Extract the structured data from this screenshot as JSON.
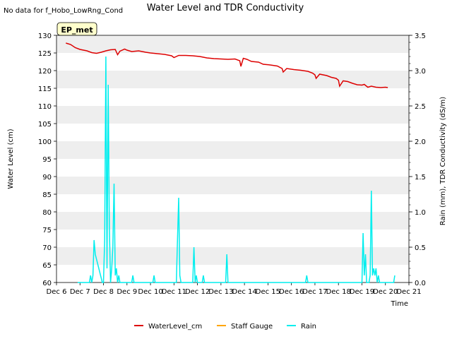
{
  "chart_data": {
    "type": "line",
    "title": "Water Level and TDR Conductivity",
    "corner_note": "No data for f_Hobo_LowRng_Cond",
    "badge": "EP_met",
    "xlabel": "Time",
    "ylabel_left": "Water Level (cm)",
    "ylabel_right": "Rain (mm), TDR Conductivity (dS/m)",
    "x_ticks": [
      "Dec 6",
      "Dec 7",
      "Dec 8",
      "Dec 9",
      "Dec 10",
      "Dec 11",
      "Dec 12",
      "Dec 13",
      "Dec 14",
      "Dec 15",
      "Dec 16",
      "Dec 17",
      "Dec 18",
      "Dec 19",
      "Dec 20",
      "Dec 21"
    ],
    "x_range_days": [
      6,
      21
    ],
    "ylim_left": [
      60,
      130
    ],
    "yticks_left": [
      "60",
      "65",
      "70",
      "75",
      "80",
      "85",
      "90",
      "95",
      "100",
      "105",
      "110",
      "115",
      "120",
      "125",
      "130"
    ],
    "ylim_right": [
      0,
      3.5
    ],
    "yticks_right": [
      "0.0",
      "0.5",
      "1.0",
      "1.5",
      "2.0",
      "2.5",
      "3.0",
      "3.5"
    ],
    "grid": "horizontal bands",
    "legend_position": "bottom",
    "colors": {
      "WaterLevel_cm": "#dd0000",
      "Staff Gauge": "#ffa500",
      "Rain": "#00eeee",
      "band": "#eeeeee"
    },
    "legend": [
      "WaterLevel_cm",
      "Staff Gauge",
      "Rain"
    ],
    "series": [
      {
        "name": "WaterLevel_cm",
        "axis": "left",
        "points": [
          [
            6.4,
            127.8
          ],
          [
            6.6,
            127.4
          ],
          [
            6.8,
            126.5
          ],
          [
            7.0,
            126.0
          ],
          [
            7.3,
            125.6
          ],
          [
            7.5,
            125.1
          ],
          [
            7.7,
            124.9
          ],
          [
            7.9,
            125.2
          ],
          [
            8.1,
            125.6
          ],
          [
            8.3,
            125.9
          ],
          [
            8.5,
            126.0
          ],
          [
            8.6,
            124.5
          ],
          [
            8.7,
            125.5
          ],
          [
            8.9,
            126.1
          ],
          [
            9.0,
            125.8
          ],
          [
            9.2,
            125.4
          ],
          [
            9.5,
            125.6
          ],
          [
            9.8,
            125.2
          ],
          [
            10.0,
            125.0
          ],
          [
            10.3,
            124.8
          ],
          [
            10.6,
            124.6
          ],
          [
            10.9,
            124.2
          ],
          [
            11.0,
            123.7
          ],
          [
            11.2,
            124.3
          ],
          [
            11.5,
            124.3
          ],
          [
            11.8,
            124.2
          ],
          [
            12.1,
            124.0
          ],
          [
            12.4,
            123.6
          ],
          [
            12.7,
            123.4
          ],
          [
            13.0,
            123.3
          ],
          [
            13.3,
            123.2
          ],
          [
            13.6,
            123.3
          ],
          [
            13.8,
            122.8
          ],
          [
            13.85,
            121.2
          ],
          [
            13.95,
            123.5
          ],
          [
            14.1,
            123.2
          ],
          [
            14.3,
            122.6
          ],
          [
            14.6,
            122.4
          ],
          [
            14.8,
            121.8
          ],
          [
            15.1,
            121.6
          ],
          [
            15.4,
            121.3
          ],
          [
            15.6,
            120.6
          ],
          [
            15.65,
            119.6
          ],
          [
            15.8,
            120.6
          ],
          [
            16.1,
            120.3
          ],
          [
            16.4,
            120.1
          ],
          [
            16.7,
            119.8
          ],
          [
            16.9,
            119.3
          ],
          [
            17.0,
            118.8
          ],
          [
            17.05,
            117.8
          ],
          [
            17.2,
            119.0
          ],
          [
            17.5,
            118.6
          ],
          [
            17.7,
            118.1
          ],
          [
            17.9,
            117.8
          ],
          [
            18.0,
            117.3
          ],
          [
            18.05,
            115.6
          ],
          [
            18.2,
            117.1
          ],
          [
            18.4,
            116.9
          ],
          [
            18.6,
            116.4
          ],
          [
            18.8,
            116.0
          ],
          [
            19.0,
            115.9
          ],
          [
            19.1,
            116.1
          ],
          [
            19.25,
            115.3
          ],
          [
            19.4,
            115.6
          ],
          [
            19.6,
            115.3
          ],
          [
            19.8,
            115.2
          ],
          [
            20.0,
            115.3
          ],
          [
            20.1,
            115.2
          ]
        ]
      },
      {
        "name": "Staff Gauge",
        "axis": "left",
        "points": []
      },
      {
        "name": "Rain",
        "axis": "right",
        "points": [
          [
            6.9,
            0
          ],
          [
            7.4,
            0
          ],
          [
            7.45,
            0.1
          ],
          [
            7.5,
            0
          ],
          [
            7.55,
            0.1
          ],
          [
            7.6,
            0.6
          ],
          [
            7.65,
            0.4
          ],
          [
            7.95,
            0
          ],
          [
            8.0,
            0
          ],
          [
            8.05,
            0.6
          ],
          [
            8.1,
            3.2
          ],
          [
            8.15,
            0.2
          ],
          [
            8.2,
            2.8
          ],
          [
            8.25,
            0.8
          ],
          [
            8.3,
            0
          ],
          [
            8.35,
            0.2
          ],
          [
            8.4,
            0.5
          ],
          [
            8.45,
            1.4
          ],
          [
            8.5,
            0.1
          ],
          [
            8.55,
            0.2
          ],
          [
            8.6,
            0
          ],
          [
            8.65,
            0.1
          ],
          [
            8.7,
            0
          ],
          [
            9.2,
            0
          ],
          [
            9.25,
            0.1
          ],
          [
            9.3,
            0
          ],
          [
            10.1,
            0
          ],
          [
            10.15,
            0.1
          ],
          [
            10.2,
            0
          ],
          [
            11.1,
            0
          ],
          [
            11.15,
            0.6
          ],
          [
            11.2,
            1.2
          ],
          [
            11.25,
            0.1
          ],
          [
            11.3,
            0
          ],
          [
            11.8,
            0
          ],
          [
            11.85,
            0.5
          ],
          [
            11.9,
            0
          ],
          [
            11.95,
            0.1
          ],
          [
            12.0,
            0
          ],
          [
            12.2,
            0
          ],
          [
            12.25,
            0.1
          ],
          [
            12.3,
            0
          ],
          [
            13.2,
            0
          ],
          [
            13.25,
            0.4
          ],
          [
            13.3,
            0
          ],
          [
            16.6,
            0
          ],
          [
            16.65,
            0.1
          ],
          [
            16.7,
            0
          ],
          [
            19.0,
            0
          ],
          [
            19.05,
            0.7
          ],
          [
            19.1,
            0.1
          ],
          [
            19.15,
            0.4
          ],
          [
            19.2,
            0
          ],
          [
            19.3,
            0
          ],
          [
            19.35,
            0.1
          ],
          [
            19.4,
            1.3
          ],
          [
            19.45,
            0.1
          ],
          [
            19.5,
            0.2
          ],
          [
            19.55,
            0.1
          ],
          [
            19.6,
            0.2
          ],
          [
            19.65,
            0
          ],
          [
            19.7,
            0.1
          ],
          [
            19.75,
            0
          ],
          [
            20.35,
            0
          ],
          [
            20.4,
            0.1
          ]
        ]
      }
    ]
  }
}
